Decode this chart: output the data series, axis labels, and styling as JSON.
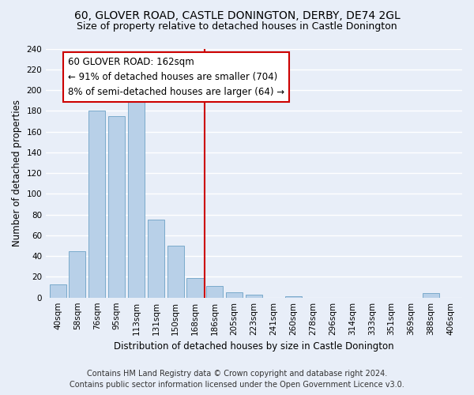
{
  "title": "60, GLOVER ROAD, CASTLE DONINGTON, DERBY, DE74 2GL",
  "subtitle": "Size of property relative to detached houses in Castle Donington",
  "xlabel": "Distribution of detached houses by size in Castle Donington",
  "ylabel": "Number of detached properties",
  "bar_labels": [
    "40sqm",
    "58sqm",
    "76sqm",
    "95sqm",
    "113sqm",
    "131sqm",
    "150sqm",
    "168sqm",
    "186sqm",
    "205sqm",
    "223sqm",
    "241sqm",
    "260sqm",
    "278sqm",
    "296sqm",
    "314sqm",
    "333sqm",
    "351sqm",
    "369sqm",
    "388sqm",
    "406sqm"
  ],
  "bar_values": [
    13,
    45,
    180,
    175,
    195,
    75,
    50,
    19,
    11,
    5,
    3,
    0,
    1,
    0,
    0,
    0,
    0,
    0,
    0,
    4,
    0
  ],
  "bar_color": "#b8d0e8",
  "bar_edge_color": "#7aaacb",
  "vline_x": 7.5,
  "vline_color": "#cc0000",
  "annotation_title": "60 GLOVER ROAD: 162sqm",
  "annotation_line1": "← 91% of detached houses are smaller (704)",
  "annotation_line2": "8% of semi-detached houses are larger (64) →",
  "annotation_box_color": "#ffffff",
  "annotation_box_edge": "#cc0000",
  "ylim": [
    0,
    240
  ],
  "yticks": [
    0,
    20,
    40,
    60,
    80,
    100,
    120,
    140,
    160,
    180,
    200,
    220,
    240
  ],
  "footer1": "Contains HM Land Registry data © Crown copyright and database right 2024.",
  "footer2": "Contains public sector information licensed under the Open Government Licence v3.0.",
  "bg_color": "#e8eef8",
  "plot_bg_color": "#e8eef8",
  "title_fontsize": 10,
  "subtitle_fontsize": 9,
  "axis_label_fontsize": 8.5,
  "tick_fontsize": 7.5,
  "annotation_fontsize": 8.5,
  "footer_fontsize": 7
}
